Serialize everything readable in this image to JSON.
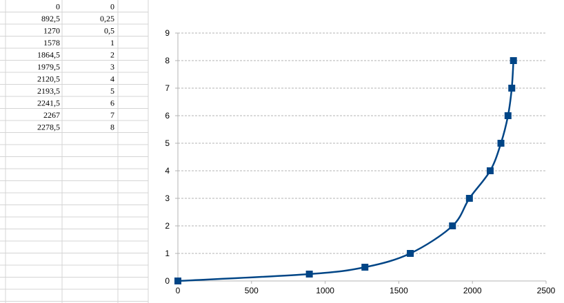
{
  "sheet": {
    "rows": [
      [
        "0",
        "0"
      ],
      [
        "892,5",
        "0,25"
      ],
      [
        "1270",
        "0,5"
      ],
      [
        "1578",
        "1"
      ],
      [
        "1864,5",
        "2"
      ],
      [
        "1979,5",
        "3"
      ],
      [
        "2120,5",
        "4"
      ],
      [
        "2193,5",
        "5"
      ],
      [
        "2241,5",
        "6"
      ],
      [
        "2267",
        "7"
      ],
      [
        "2278,5",
        "8"
      ]
    ],
    "colors": {
      "grid": "#d4d4d4",
      "text": "#000000"
    }
  },
  "chart_data": {
    "type": "scatter",
    "smooth": true,
    "marker": "square",
    "color": "#004586",
    "x": [
      0,
      892.5,
      1270,
      1578,
      1864.5,
      1979.5,
      2120.5,
      2193.5,
      2241.5,
      2267,
      2278.5
    ],
    "y": [
      0,
      0.25,
      0.5,
      1,
      2,
      3,
      4,
      5,
      6,
      7,
      8
    ],
    "xlim": [
      0,
      2500
    ],
    "ylim": [
      0,
      9
    ],
    "xticks": [
      0,
      500,
      1000,
      1500,
      2000,
      2500
    ],
    "yticks": [
      0,
      1,
      2,
      3,
      4,
      5,
      6,
      7,
      8,
      9
    ],
    "xticklabels": [
      "0",
      "500",
      "1000",
      "1500",
      "2000",
      "2500"
    ],
    "yticklabels": [
      "0",
      "1",
      "2",
      "3",
      "4",
      "5",
      "6",
      "7",
      "8",
      "9"
    ],
    "grid": "horizontal-dashed",
    "legend": "none",
    "title": "",
    "xlabel": "",
    "ylabel": ""
  }
}
